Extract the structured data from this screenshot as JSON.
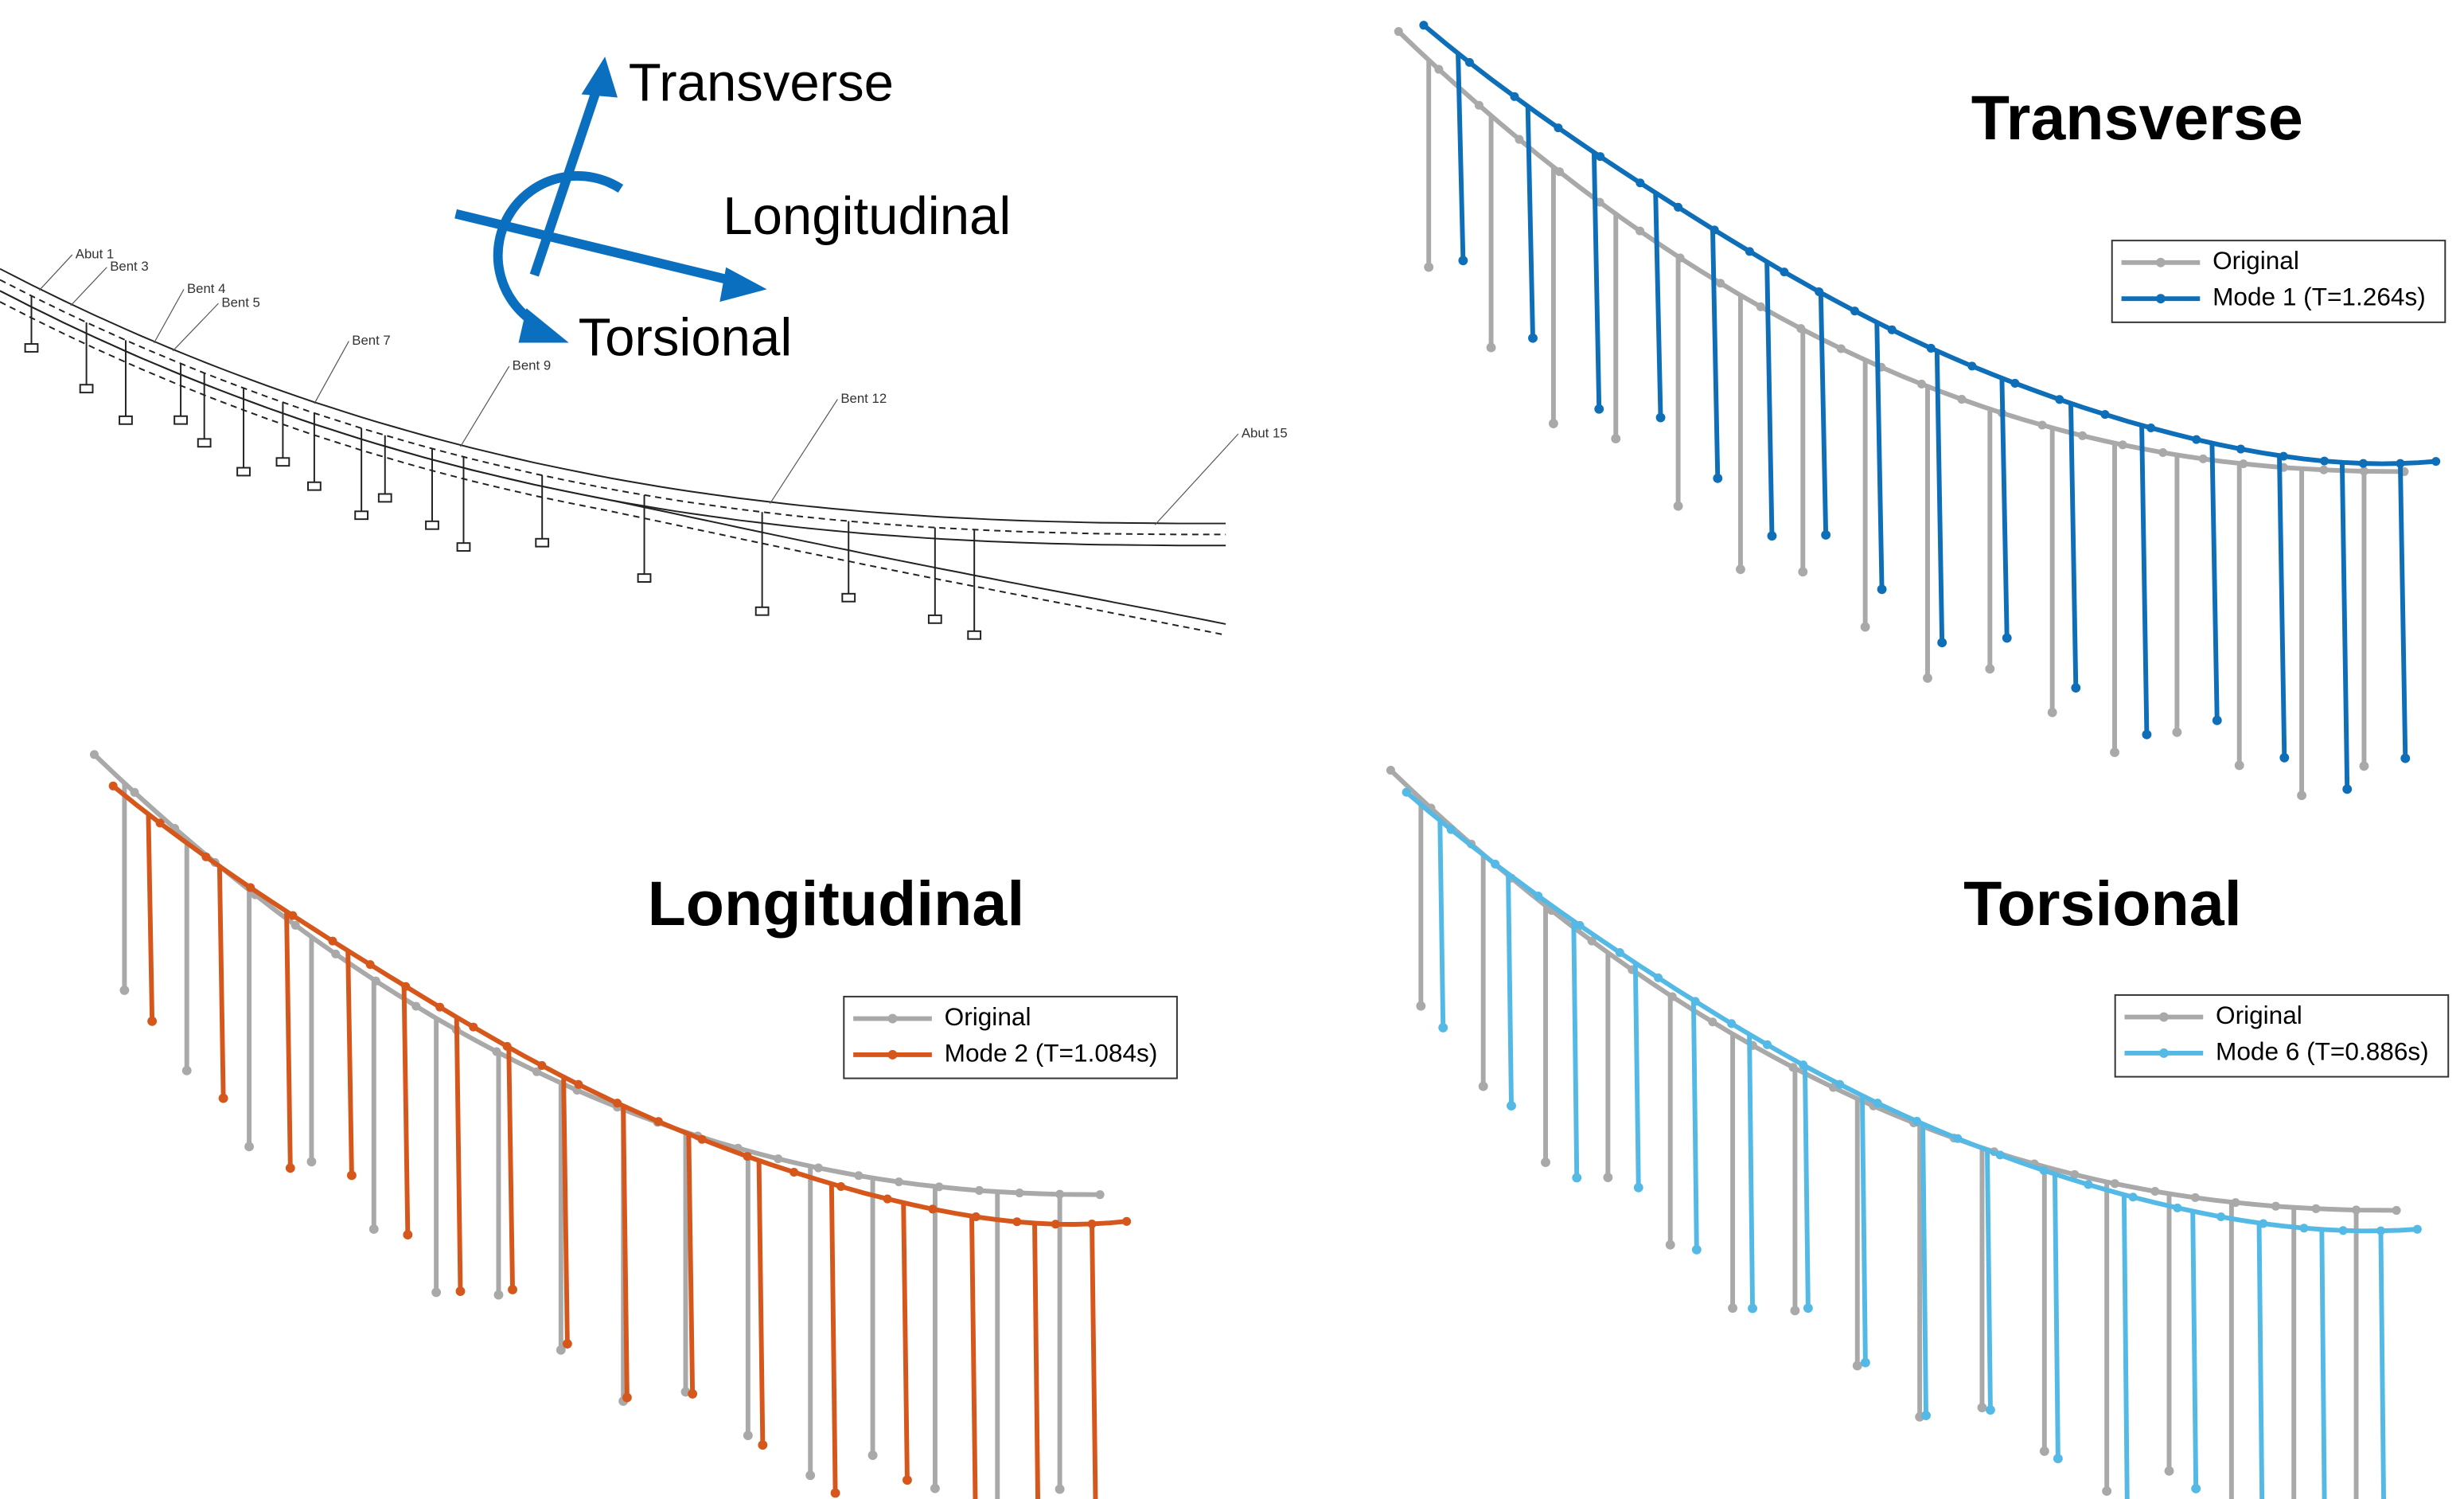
{
  "direction_diagram": {
    "arrows": [
      "Transverse",
      "Longitudinal",
      "Torsional"
    ],
    "color": "#0b6fc0"
  },
  "bridge_labels": [
    "Abut 1",
    "Bent 3",
    "Bent 4",
    "Bent 5",
    "Bent 7",
    "Bent 9",
    "Bent 12",
    "Abut 15"
  ],
  "panels": [
    {
      "title": "Transverse",
      "legend": [
        {
          "name": "Original",
          "color": "#a9a9a9"
        },
        {
          "name": "Mode 1 (T=1.264s)",
          "color": "#0e6fb8"
        }
      ]
    },
    {
      "title": "Longitudinal",
      "legend": [
        {
          "name": "Original",
          "color": "#a9a9a9"
        },
        {
          "name": "Mode 2 (T=1.084s)",
          "color": "#d6571c"
        }
      ]
    },
    {
      "title": "Torsional",
      "legend": [
        {
          "name": "Original",
          "color": "#a9a9a9"
        },
        {
          "name": "Mode 6 (T=0.886s)",
          "color": "#55b9e6"
        }
      ]
    }
  ]
}
